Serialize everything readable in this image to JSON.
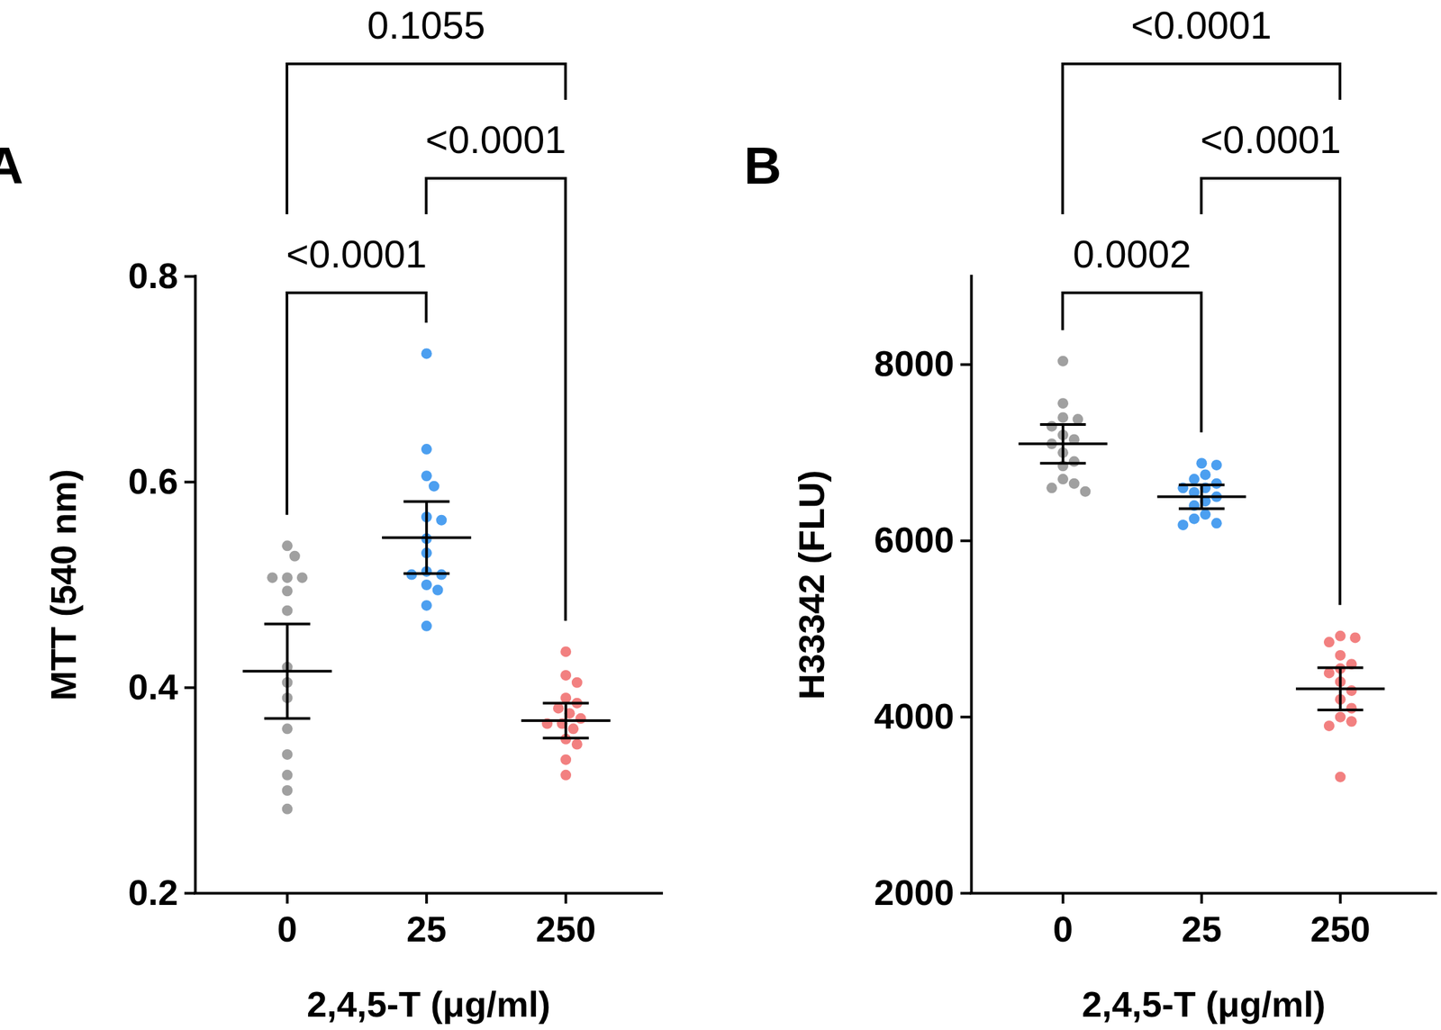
{
  "chart_data": [
    {
      "type": "scatter",
      "panel": "A",
      "x_label": "2,4,5-T (μg/ml)",
      "y_label": "MTT (540 nm)",
      "categories": [
        "0",
        "25",
        "250"
      ],
      "colors": [
        "#a0a0a0",
        "#4c9ff0",
        "#f28080"
      ],
      "values": [
        [
          0.538,
          0.528,
          0.507,
          0.507,
          0.507,
          0.494,
          0.475,
          0.42,
          0.405,
          0.39,
          0.36,
          0.335,
          0.315,
          0.3,
          0.282
        ],
        [
          0.725,
          0.632,
          0.606,
          0.596,
          0.566,
          0.563,
          0.545,
          0.531,
          0.513,
          0.51,
          0.51,
          0.5,
          0.495,
          0.48,
          0.46
        ],
        [
          0.435,
          0.412,
          0.405,
          0.39,
          0.385,
          0.38,
          0.375,
          0.37,
          0.365,
          0.365,
          0.36,
          0.35,
          0.345,
          0.33,
          0.315
        ]
      ],
      "means": [
        0.416,
        0.546,
        0.368
      ],
      "errors": [
        0.046,
        0.035,
        0.017
      ],
      "ylim": [
        0.2,
        0.8
      ],
      "yticks": [
        0.2,
        0.4,
        0.6,
        0.8
      ],
      "comparisons": [
        {
          "from": "0",
          "to": "25",
          "label": "<0.0001"
        },
        {
          "from": "25",
          "to": "250",
          "label": "<0.0001"
        },
        {
          "from": "0",
          "to": "250",
          "label": "0.1055"
        }
      ]
    },
    {
      "type": "scatter",
      "panel": "B",
      "x_label": "2,4,5-T (μg/ml)",
      "y_label": "H33342 (FLU)",
      "categories": [
        "0",
        "25",
        "250"
      ],
      "colors": [
        "#a0a0a0",
        "#4c9ff0",
        "#f28080"
      ],
      "values": [
        [
          8040,
          7560,
          7400,
          7380,
          7300,
          7200,
          7150,
          7100,
          7000,
          6900,
          6850,
          6700,
          6650,
          6600,
          6560
        ],
        [
          6880,
          6860,
          6750,
          6700,
          6650,
          6600,
          6600,
          6550,
          6500,
          6450,
          6400,
          6300,
          6250,
          6200,
          6180
        ],
        [
          4920,
          4900,
          4850,
          4700,
          4600,
          4550,
          4500,
          4400,
          4300,
          4200,
          4100,
          4000,
          3950,
          3900,
          3320
        ]
      ],
      "means": [
        7100,
        6500,
        4320
      ],
      "errors": [
        220,
        135,
        240
      ],
      "ylim": [
        2000,
        9000
      ],
      "yticks": [
        2000,
        4000,
        6000,
        8000
      ],
      "comparisons": [
        {
          "from": "0",
          "to": "25",
          "label": "0.0002"
        },
        {
          "from": "25",
          "to": "250",
          "label": "<0.0001"
        },
        {
          "from": "0",
          "to": "250",
          "label": "<0.0001"
        }
      ]
    }
  ]
}
